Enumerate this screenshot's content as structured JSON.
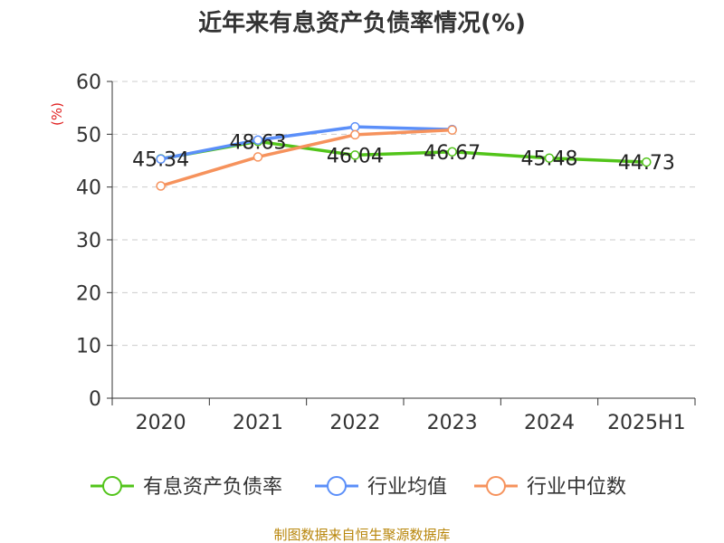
{
  "chart_data": {
    "type": "line",
    "title": "近年来有息资产负债率情况(%)",
    "ylabel": "(%)",
    "xlabel": "",
    "categories": [
      "2020",
      "2021",
      "2022",
      "2023",
      "2024",
      "2025H1"
    ],
    "ylim": [
      0,
      60
    ],
    "yticks": [
      0,
      10,
      20,
      30,
      40,
      50,
      60
    ],
    "grid": true,
    "legend_position": "bottom",
    "series": [
      {
        "name": "有息资产负债率",
        "color": "#52c41a",
        "values": [
          45.34,
          48.63,
          46.04,
          46.67,
          45.48,
          44.73
        ],
        "show_labels": true
      },
      {
        "name": "行业均值",
        "color": "#5b8ff9",
        "values": [
          45.3,
          48.9,
          51.4,
          50.9,
          null,
          null
        ],
        "show_labels": false
      },
      {
        "name": "行业中位数",
        "color": "#f6925c",
        "values": [
          40.2,
          45.7,
          49.9,
          50.8,
          null,
          null
        ],
        "show_labels": false
      }
    ]
  },
  "source": "制图数据来自恒生聚源数据库"
}
